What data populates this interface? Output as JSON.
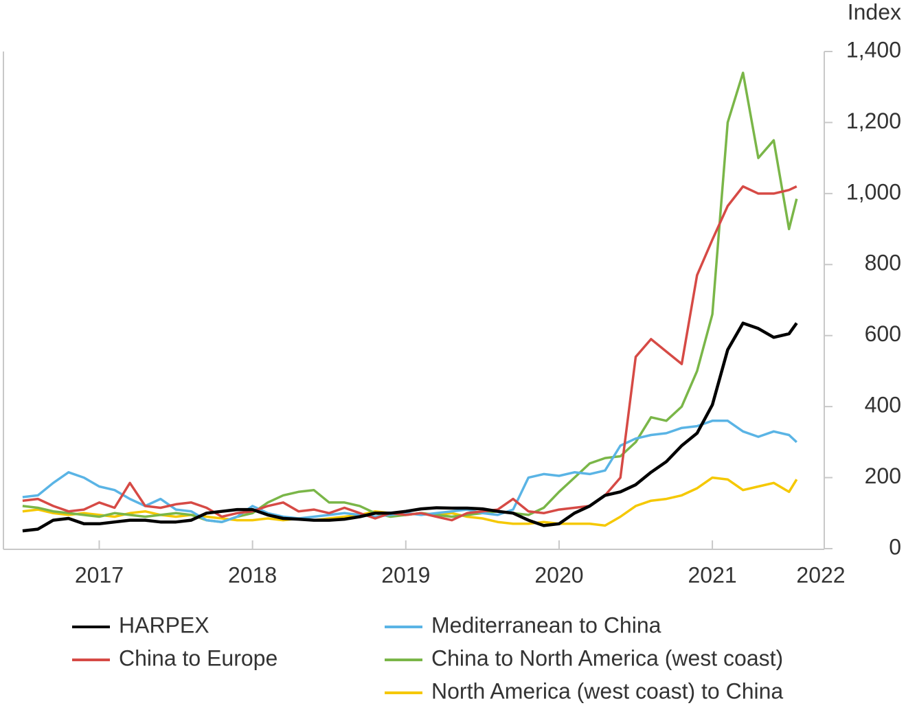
{
  "chart_data": {
    "type": "line",
    "y_axis_label": "Index",
    "xlim": [
      2016.375,
      2021.73
    ],
    "xticks": [
      2017,
      2018,
      2019,
      2020,
      2021,
      2022
    ],
    "ylim": [
      0,
      1400
    ],
    "yticks": [
      0,
      200,
      400,
      600,
      800,
      {
        "value": 1000,
        "label": "1,000"
      },
      {
        "value": 1200,
        "label": "1,200"
      },
      {
        "value": 1400,
        "label": "1,400"
      }
    ],
    "grid": false,
    "x": [
      2016.5,
      2016.6,
      2016.7,
      2016.8,
      2016.9,
      2017.0,
      2017.1,
      2017.2,
      2017.3,
      2017.4,
      2017.5,
      2017.6,
      2017.7,
      2017.8,
      2017.9,
      2018.0,
      2018.1,
      2018.2,
      2018.3,
      2018.4,
      2018.5,
      2018.6,
      2018.7,
      2018.8,
      2018.9,
      2019.0,
      2019.1,
      2019.2,
      2019.3,
      2019.4,
      2019.5,
      2019.6,
      2019.7,
      2019.8,
      2019.9,
      2020.0,
      2020.1,
      2020.2,
      2020.3,
      2020.4,
      2020.5,
      2020.6,
      2020.7,
      2020.8,
      2020.9,
      2021.0,
      2021.1,
      2021.2,
      2021.3,
      2021.4,
      2021.5,
      2021.55
    ],
    "series": [
      {
        "name": "HARPEX",
        "color": "#000000",
        "values": [
          50,
          55,
          80,
          85,
          70,
          70,
          75,
          80,
          80,
          75,
          75,
          80,
          100,
          105,
          110,
          110,
          95,
          85,
          83,
          80,
          80,
          83,
          90,
          100,
          100,
          105,
          112,
          115,
          114,
          114,
          112,
          105,
          100,
          80,
          65,
          70,
          100,
          120,
          150,
          160,
          180,
          215,
          245,
          290,
          325,
          405,
          560,
          635,
          620,
          595,
          605,
          635
        ]
      },
      {
        "name": "China to Europe",
        "color": "#d64a45",
        "values": [
          135,
          140,
          120,
          105,
          110,
          130,
          115,
          185,
          120,
          115,
          125,
          130,
          115,
          90,
          100,
          105,
          120,
          130,
          105,
          110,
          100,
          115,
          100,
          85,
          100,
          95,
          100,
          90,
          80,
          100,
          105,
          110,
          140,
          105,
          100,
          110,
          115,
          120,
          150,
          200,
          540,
          590,
          555,
          520,
          770,
          870,
          965,
          1020,
          1000,
          1000,
          1010,
          1020
        ]
      },
      {
        "name": "Mediterranean to China",
        "color": "#5ab4e5",
        "values": [
          145,
          150,
          185,
          215,
          200,
          175,
          165,
          140,
          120,
          140,
          110,
          105,
          80,
          75,
          90,
          120,
          100,
          90,
          85,
          90,
          95,
          100,
          95,
          90,
          95,
          100,
          95,
          100,
          105,
          110,
          100,
          95,
          110,
          200,
          210,
          205,
          215,
          210,
          220,
          290,
          310,
          320,
          325,
          340,
          345,
          360,
          360,
          330,
          315,
          330,
          320,
          300
        ]
      },
      {
        "name": "China to North America (west coast)",
        "color": "#7ab648",
        "values": [
          120,
          115,
          105,
          100,
          95,
          90,
          100,
          95,
          90,
          95,
          100,
          95,
          80,
          75,
          90,
          100,
          130,
          150,
          160,
          165,
          130,
          130,
          120,
          100,
          90,
          95,
          100,
          95,
          90,
          95,
          100,
          105,
          100,
          95,
          115,
          160,
          200,
          240,
          255,
          260,
          300,
          370,
          360,
          400,
          500,
          660,
          1200,
          1340,
          1100,
          1150,
          900,
          985
        ]
      },
      {
        "name": "North America (west coast) to China",
        "color": "#f5c800",
        "values": [
          105,
          110,
          100,
          95,
          100,
          95,
          90,
          100,
          105,
          95,
          90,
          95,
          90,
          85,
          80,
          80,
          85,
          80,
          85,
          80,
          85,
          90,
          95,
          105,
          100,
          95,
          100,
          95,
          100,
          90,
          85,
          75,
          70,
          70,
          75,
          70,
          70,
          70,
          65,
          90,
          120,
          135,
          140,
          150,
          170,
          200,
          195,
          165,
          175,
          185,
          160,
          195
        ]
      }
    ],
    "legend": "bottom"
  }
}
